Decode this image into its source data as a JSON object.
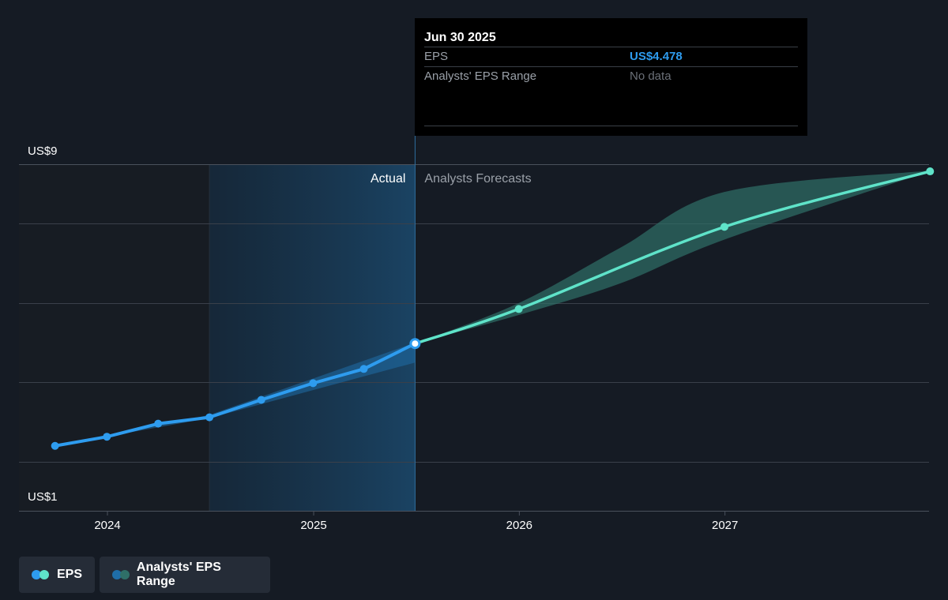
{
  "tooltip": {
    "date": "Jun 30 2025",
    "eps_label": "EPS",
    "eps_value": "US$4.478",
    "range_label": "Analysts' EPS Range",
    "range_value": "No data"
  },
  "section_labels": {
    "actual": "Actual",
    "forecast": "Analysts Forecasts"
  },
  "legend": {
    "eps_label": "EPS",
    "range_label": "Analysts' EPS Range"
  },
  "colors": {
    "background": "#151b24",
    "eps_actual": "#2e9cef",
    "eps_forecast": "#5fe3c9",
    "range_actual": "#1f6ea8",
    "range_forecast": "#2f6f68",
    "gridline": "#3a404a"
  },
  "chart_data": {
    "type": "line",
    "y_tick_labels": [
      "US$9",
      "US$1"
    ],
    "ylim": [
      1,
      9
    ],
    "x_tick_labels": [
      "2024",
      "2025",
      "2026",
      "2027"
    ],
    "grid": true,
    "actual": {
      "name": "EPS",
      "points": [
        {
          "x": "2023-09-30",
          "y": 1.9
        },
        {
          "x": "2023-12-31",
          "y": 2.13
        },
        {
          "x": "2024-03-31",
          "y": 2.46
        },
        {
          "x": "2024-06-30",
          "y": 2.62
        },
        {
          "x": "2024-09-30",
          "y": 3.06
        },
        {
          "x": "2024-12-31",
          "y": 3.48
        },
        {
          "x": "2025-03-31",
          "y": 3.84
        },
        {
          "x": "2025-06-30",
          "y": 4.478
        }
      ],
      "range": [
        {
          "x": "2023-09-30",
          "low": 1.9,
          "high": 1.9
        },
        {
          "x": "2024-06-30",
          "low": 2.6,
          "high": 2.68
        },
        {
          "x": "2025-06-30",
          "low": 4.0,
          "high": 4.5
        }
      ]
    },
    "forecast": {
      "name": "EPS",
      "points": [
        {
          "x": "2025-06-30",
          "y": 4.478
        },
        {
          "x": "2025-12-31",
          "y": 5.35
        },
        {
          "x": "2026-12-31",
          "y": 7.42
        },
        {
          "x": "2027-12-31",
          "y": 8.82
        }
      ],
      "range": [
        {
          "x": "2025-06-30",
          "low": 4.478,
          "high": 4.478
        },
        {
          "x": "2025-12-31",
          "low": 5.2,
          "high": 5.5
        },
        {
          "x": "2026-06-30",
          "low": 6.0,
          "high": 6.9
        },
        {
          "x": "2026-12-31",
          "low": 7.1,
          "high": 8.3
        },
        {
          "x": "2027-12-31",
          "low": 8.82,
          "high": 8.84
        }
      ]
    }
  }
}
